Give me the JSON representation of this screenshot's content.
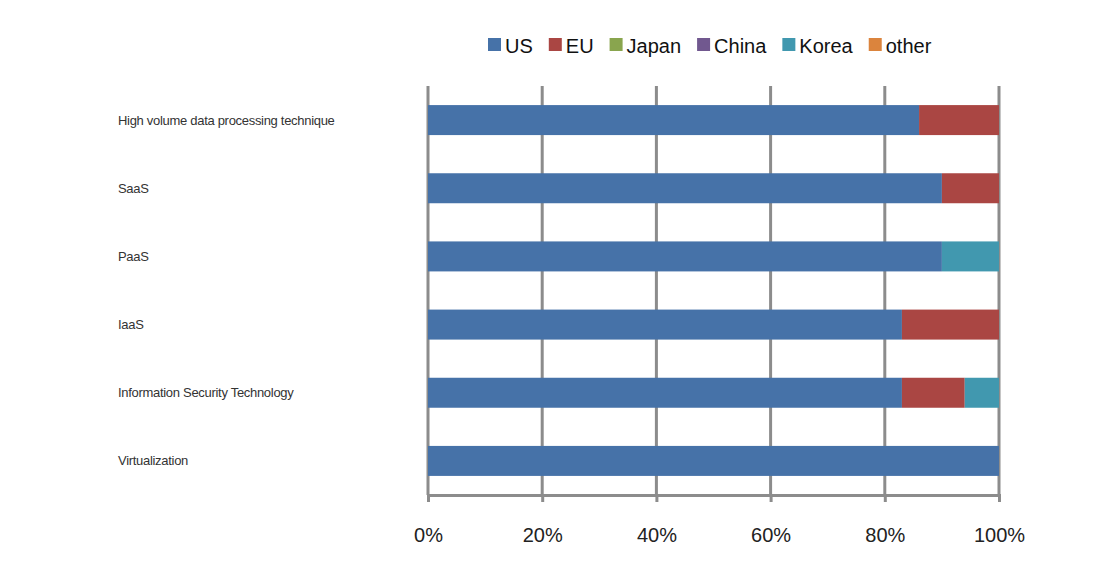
{
  "chart_data": {
    "type": "bar",
    "orientation": "horizontal",
    "stacked": true,
    "grid": true,
    "legend": "top",
    "categories": [
      "High volume data processing technique",
      "SaaS",
      "PaaS",
      "IaaS",
      "Information Security Technology",
      "Virtualization"
    ],
    "series": [
      {
        "name": "US",
        "color": "#4672a8",
        "values": [
          86,
          90,
          90,
          83,
          83,
          100
        ]
      },
      {
        "name": "EU",
        "color": "#aa4643",
        "values": [
          14,
          10,
          0,
          17,
          11,
          0
        ]
      },
      {
        "name": "Japan",
        "color": "#89a54e",
        "values": [
          0,
          0,
          0,
          0,
          0,
          0
        ]
      },
      {
        "name": "China",
        "color": "#71588f",
        "values": [
          0,
          0,
          0,
          0,
          0,
          0
        ]
      },
      {
        "name": "Korea",
        "color": "#4198af",
        "values": [
          0,
          0,
          10,
          0,
          6,
          0
        ]
      },
      {
        "name": "other",
        "color": "#db843d",
        "values": [
          0,
          0,
          0,
          0,
          0,
          0
        ]
      }
    ],
    "xlim": [
      0,
      100
    ],
    "xticks": [
      {
        "value": 0,
        "label": "0%"
      },
      {
        "value": 20,
        "label": "20%"
      },
      {
        "value": 40,
        "label": "40%"
      },
      {
        "value": 60,
        "label": "60%"
      },
      {
        "value": 80,
        "label": "80%"
      },
      {
        "value": 100,
        "label": "100%"
      }
    ]
  }
}
